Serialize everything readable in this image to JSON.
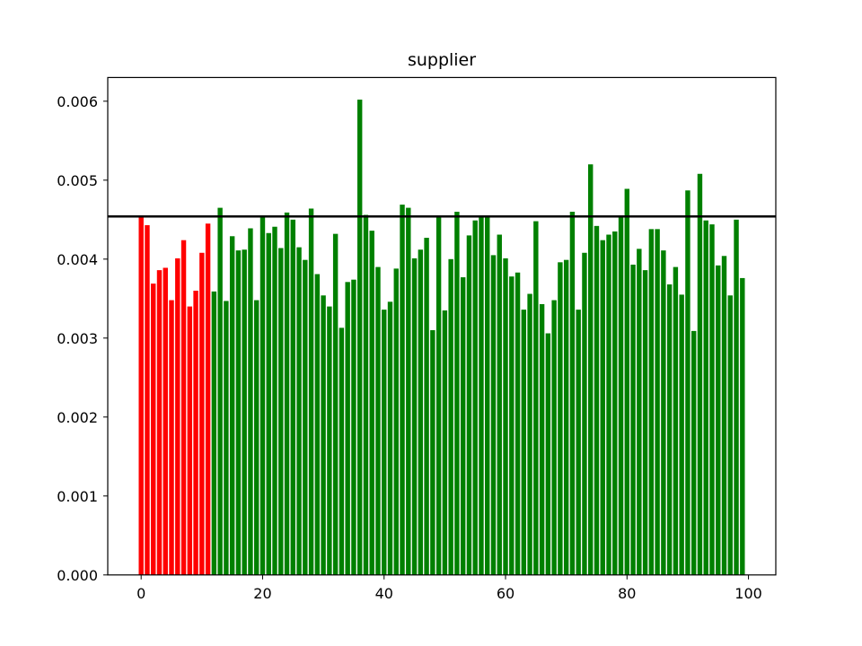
{
  "chart_data": {
    "type": "bar",
    "title": "supplier",
    "xlabel": "",
    "ylabel": "",
    "xlim": [
      -5.5,
      104.5
    ],
    "ylim": [
      0,
      0.0063
    ],
    "xticks": [
      0,
      20,
      40,
      60,
      80,
      100
    ],
    "xtick_labels": [
      "0",
      "20",
      "40",
      "60",
      "80",
      "100"
    ],
    "yticks": [
      0,
      0.001,
      0.002,
      0.003,
      0.004,
      0.005,
      0.006
    ],
    "ytick_labels": [
      "0.000",
      "0.001",
      "0.002",
      "0.003",
      "0.004",
      "0.005",
      "0.006"
    ],
    "grid": false,
    "highlight_count": 12,
    "colors": {
      "highlight": "#ff0000",
      "normal": "#008000",
      "reference_line": "#000000"
    },
    "reference_line": 0.00454,
    "x": [
      0,
      1,
      2,
      3,
      4,
      5,
      6,
      7,
      8,
      9,
      10,
      11,
      12,
      13,
      14,
      15,
      16,
      17,
      18,
      19,
      20,
      21,
      22,
      23,
      24,
      25,
      26,
      27,
      28,
      29,
      30,
      31,
      32,
      33,
      34,
      35,
      36,
      37,
      38,
      39,
      40,
      41,
      42,
      43,
      44,
      45,
      46,
      47,
      48,
      49,
      50,
      51,
      52,
      53,
      54,
      55,
      56,
      57,
      58,
      59,
      60,
      61,
      62,
      63,
      64,
      65,
      66,
      67,
      68,
      69,
      70,
      71,
      72,
      73,
      74,
      75,
      76,
      77,
      78,
      79,
      80,
      81,
      82,
      83,
      84,
      85,
      86,
      87,
      88,
      89,
      90,
      91,
      92,
      93,
      94,
      95,
      96,
      97,
      98,
      99
    ],
    "values": [
      0.00454,
      0.00443,
      0.00369,
      0.00386,
      0.00389,
      0.00348,
      0.00401,
      0.00424,
      0.0034,
      0.0036,
      0.00408,
      0.00445,
      0.00359,
      0.00465,
      0.00347,
      0.00429,
      0.00411,
      0.00412,
      0.00439,
      0.00348,
      0.00454,
      0.00433,
      0.00441,
      0.00414,
      0.00459,
      0.0045,
      0.00415,
      0.00399,
      0.00464,
      0.00381,
      0.00354,
      0.0034,
      0.00432,
      0.00313,
      0.00371,
      0.00374,
      0.00602,
      0.00456,
      0.00436,
      0.0039,
      0.00336,
      0.00346,
      0.00388,
      0.00469,
      0.00465,
      0.00401,
      0.00412,
      0.00427,
      0.0031,
      0.00454,
      0.00335,
      0.004,
      0.0046,
      0.00377,
      0.0043,
      0.00449,
      0.00454,
      0.00453,
      0.00405,
      0.00431,
      0.00401,
      0.00378,
      0.00383,
      0.00336,
      0.00356,
      0.00448,
      0.00343,
      0.00306,
      0.00348,
      0.00396,
      0.00399,
      0.0046,
      0.00336,
      0.00408,
      0.0052,
      0.00442,
      0.00424,
      0.00431,
      0.00435,
      0.00453,
      0.00489,
      0.00393,
      0.00413,
      0.00386,
      0.00438,
      0.00438,
      0.00411,
      0.00368,
      0.0039,
      0.00355,
      0.00487,
      0.00309,
      0.00508,
      0.00449,
      0.00444,
      0.00392,
      0.00404,
      0.00354,
      0.0045,
      0.00376
    ]
  }
}
